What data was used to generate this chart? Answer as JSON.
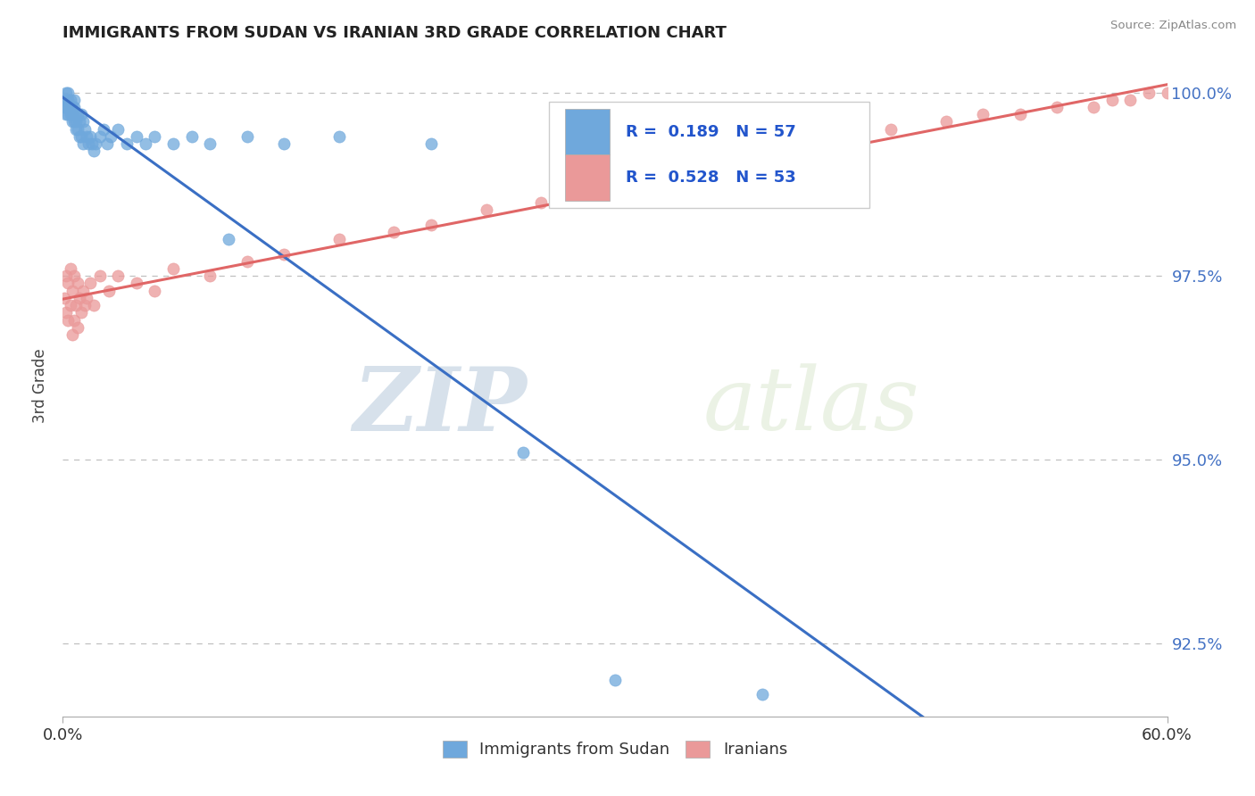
{
  "title": "IMMIGRANTS FROM SUDAN VS IRANIAN 3RD GRADE CORRELATION CHART",
  "source_text": "Source: ZipAtlas.com",
  "ylabel": "3rd Grade",
  "xmin": 0.0,
  "xmax": 0.6,
  "ymin": 0.915,
  "ymax": 1.005,
  "ytick_labels": [
    "92.5%",
    "95.0%",
    "97.5%",
    "100.0%"
  ],
  "ytick_values": [
    0.925,
    0.95,
    0.975,
    1.0
  ],
  "xtick_labels": [
    "0.0%",
    "60.0%"
  ],
  "xtick_values": [
    0.0,
    0.6
  ],
  "sudan_color": "#6fa8dc",
  "iran_color": "#ea9999",
  "sudan_line_color": "#3a6fc4",
  "iran_line_color": "#e06666",
  "r_sudan": 0.189,
  "n_sudan": 57,
  "r_iran": 0.528,
  "n_iran": 53,
  "sudan_x": [
    0.001,
    0.001,
    0.002,
    0.002,
    0.002,
    0.002,
    0.003,
    0.003,
    0.003,
    0.003,
    0.004,
    0.004,
    0.004,
    0.005,
    0.005,
    0.005,
    0.006,
    0.006,
    0.006,
    0.007,
    0.007,
    0.007,
    0.008,
    0.008,
    0.009,
    0.009,
    0.01,
    0.01,
    0.011,
    0.011,
    0.012,
    0.013,
    0.014,
    0.015,
    0.016,
    0.017,
    0.018,
    0.02,
    0.022,
    0.024,
    0.026,
    0.03,
    0.035,
    0.04,
    0.045,
    0.05,
    0.06,
    0.07,
    0.08,
    0.09,
    0.1,
    0.12,
    0.15,
    0.2,
    0.25,
    0.3,
    0.38
  ],
  "sudan_y": [
    0.999,
    0.998,
    1.0,
    0.999,
    0.998,
    0.997,
    1.0,
    0.999,
    0.998,
    0.997,
    0.999,
    0.998,
    0.997,
    0.998,
    0.997,
    0.996,
    0.999,
    0.998,
    0.996,
    0.997,
    0.996,
    0.995,
    0.997,
    0.995,
    0.996,
    0.994,
    0.997,
    0.994,
    0.996,
    0.993,
    0.995,
    0.994,
    0.993,
    0.994,
    0.993,
    0.992,
    0.993,
    0.994,
    0.995,
    0.993,
    0.994,
    0.995,
    0.993,
    0.994,
    0.993,
    0.994,
    0.993,
    0.994,
    0.993,
    0.98,
    0.994,
    0.993,
    0.994,
    0.993,
    0.951,
    0.92,
    0.918
  ],
  "iran_x": [
    0.001,
    0.002,
    0.002,
    0.003,
    0.003,
    0.004,
    0.004,
    0.005,
    0.005,
    0.006,
    0.006,
    0.007,
    0.008,
    0.008,
    0.009,
    0.01,
    0.011,
    0.012,
    0.013,
    0.015,
    0.017,
    0.02,
    0.025,
    0.03,
    0.04,
    0.05,
    0.06,
    0.08,
    0.1,
    0.12,
    0.15,
    0.18,
    0.2,
    0.23,
    0.26,
    0.29,
    0.32,
    0.35,
    0.38,
    0.4,
    0.42,
    0.45,
    0.48,
    0.5,
    0.52,
    0.54,
    0.56,
    0.57,
    0.58,
    0.59,
    0.6,
    0.61,
    0.615
  ],
  "iran_y": [
    0.972,
    0.975,
    0.97,
    0.974,
    0.969,
    0.976,
    0.971,
    0.973,
    0.967,
    0.975,
    0.969,
    0.971,
    0.974,
    0.968,
    0.972,
    0.97,
    0.973,
    0.971,
    0.972,
    0.974,
    0.971,
    0.975,
    0.973,
    0.975,
    0.974,
    0.973,
    0.976,
    0.975,
    0.977,
    0.978,
    0.98,
    0.981,
    0.982,
    0.984,
    0.985,
    0.987,
    0.988,
    0.99,
    0.992,
    0.993,
    0.994,
    0.995,
    0.996,
    0.997,
    0.997,
    0.998,
    0.998,
    0.999,
    0.999,
    1.0,
    1.0,
    1.0,
    1.0
  ],
  "watermark_zip": "ZIP",
  "watermark_atlas": "atlas",
  "legend_label_1": "Immigrants from Sudan",
  "legend_label_2": "Iranians",
  "background_color": "#ffffff",
  "grid_color": "#c0c0c0"
}
